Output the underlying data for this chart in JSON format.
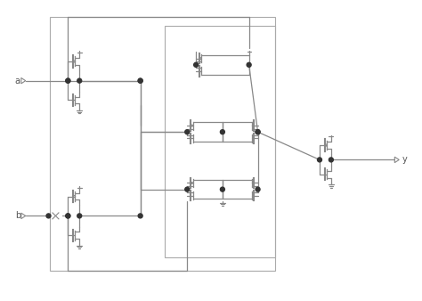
{
  "background_color": "#ffffff",
  "circuit_color": "#888888",
  "dot_color": "#333333",
  "label_color": "#555555",
  "figsize": [
    4.74,
    3.38
  ],
  "dpi": 100,
  "label_a": "a",
  "label_b": "b",
  "label_y": "y",
  "lw": 0.9
}
